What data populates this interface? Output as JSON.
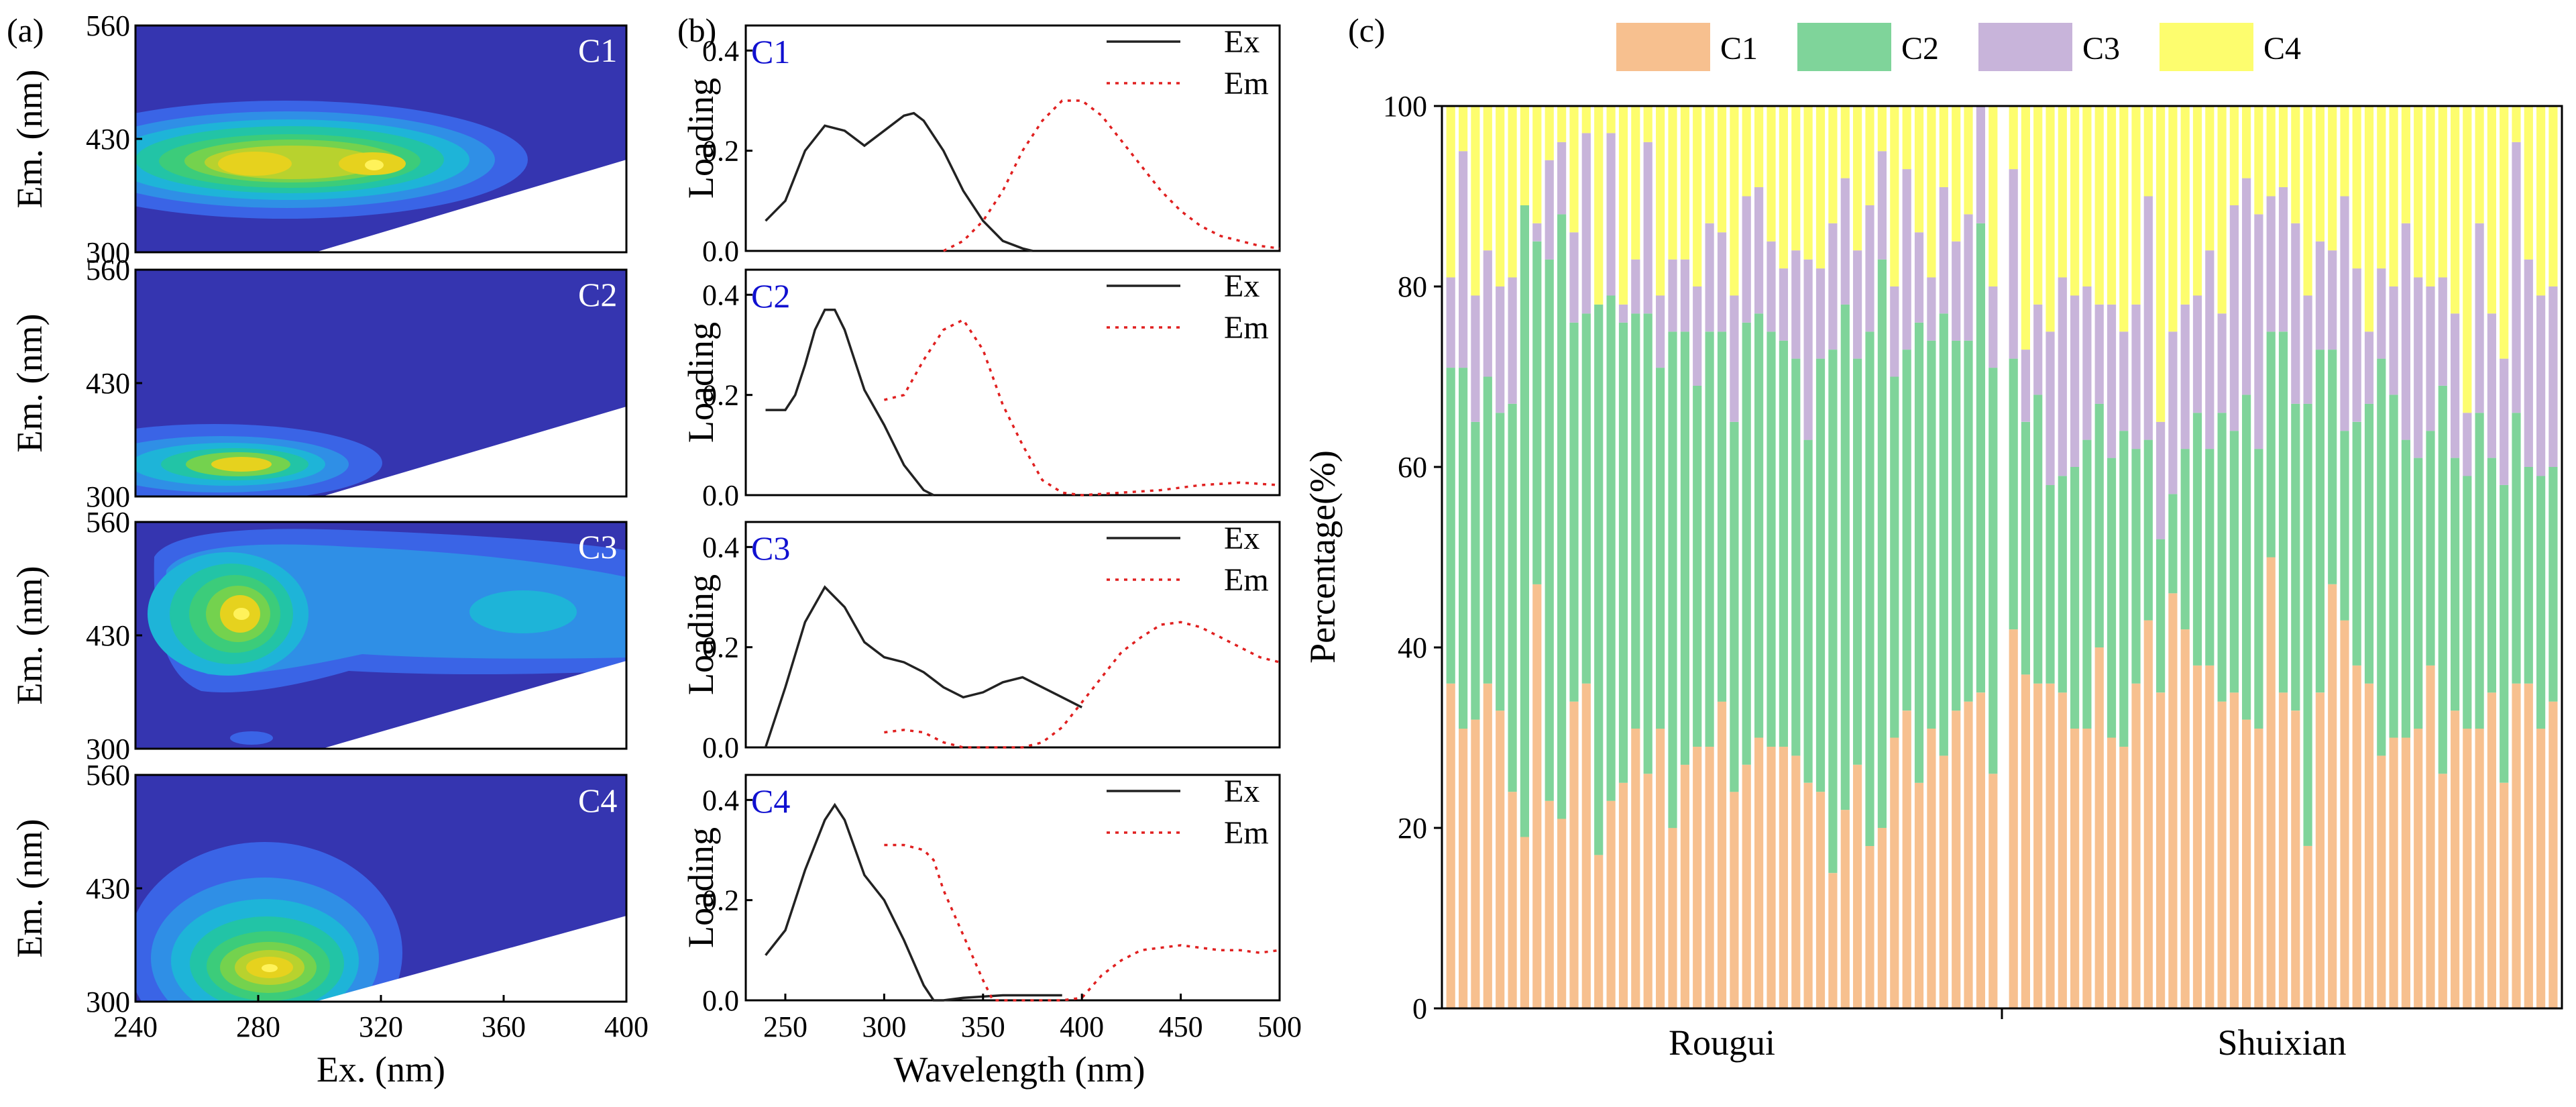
{
  "panels": {
    "a": {
      "letter": "(a)",
      "xlabel": "Ex. (nm)",
      "ylabel": "Em. (nm)",
      "xticks": [
        "240",
        "280",
        "320",
        "360",
        "400"
      ],
      "yticks": [
        "560",
        "430",
        "300"
      ],
      "components": [
        "C1",
        "C2",
        "C3",
        "C4"
      ]
    },
    "b": {
      "letter": "(b)",
      "xlabel": "Wavelength (nm)",
      "ylabel": "Loading",
      "xticks": [
        "250",
        "300",
        "350",
        "400",
        "450",
        "500"
      ],
      "yticks": [
        "0.4",
        "0.2",
        "0.0"
      ],
      "components": [
        "C1",
        "C2",
        "C3",
        "C4"
      ],
      "legend": [
        "Ex",
        "Em"
      ]
    },
    "c": {
      "letter": "(c)",
      "ylabel": "Percentage(%)",
      "yticks": [
        "100",
        "80",
        "60",
        "40",
        "20",
        "0"
      ],
      "groups": [
        "Rougui",
        "Shuixian"
      ],
      "legend": [
        "C1",
        "C2",
        "C3",
        "C4"
      ]
    }
  },
  "colors": {
    "C1": "#f7c08f",
    "C2": "#7fd49a",
    "C3": "#c8b4da",
    "C4": "#fdfd6e",
    "contour_bg": "#3535b0",
    "ex_line": "#222222",
    "em_line": "#e02020",
    "comp_label_b": "#1010d0"
  },
  "chart_data": [
    {
      "type": "heatmap",
      "description_note": "EEM contour maps of four PARAFAC components",
      "x_range_nm": [
        240,
        400
      ],
      "y_range_nm": [
        300,
        560
      ],
      "components": [
        {
          "name": "C1",
          "peaks": [
            {
              "ex": 270,
              "em": 400
            },
            {
              "ex": 315,
              "em": 400
            }
          ]
        },
        {
          "name": "C2",
          "peaks": [
            {
              "ex": 275,
              "em": 335
            }
          ]
        },
        {
          "name": "C3",
          "peaks": [
            {
              "ex": 270,
              "em": 460
            },
            {
              "ex": 370,
              "em": 460
            }
          ]
        },
        {
          "name": "C4",
          "peaks": [
            {
              "ex": 275,
              "em": 340
            }
          ]
        }
      ]
    },
    {
      "type": "line",
      "x_range_nm": [
        230,
        500
      ],
      "ylim": [
        0,
        0.45
      ],
      "components": [
        {
          "name": "C1",
          "Ex": {
            "x": [
              240,
              250,
              260,
              270,
              280,
              290,
              300,
              310,
              315,
              320,
              330,
              340,
              350,
              360,
              370,
              375
            ],
            "y": [
              0.06,
              0.1,
              0.2,
              0.25,
              0.24,
              0.21,
              0.24,
              0.27,
              0.275,
              0.26,
              0.2,
              0.12,
              0.06,
              0.02,
              0.005,
              0.0
            ]
          },
          "Em": {
            "x": [
              330,
              340,
              350,
              360,
              370,
              380,
              390,
              400,
              410,
              420,
              430,
              440,
              450,
              460,
              470,
              480,
              490,
              500
            ],
            "y": [
              0.0,
              0.02,
              0.06,
              0.12,
              0.2,
              0.26,
              0.3,
              0.3,
              0.27,
              0.22,
              0.17,
              0.12,
              0.08,
              0.05,
              0.03,
              0.02,
              0.01,
              0.005
            ]
          }
        },
        {
          "name": "C2",
          "Ex": {
            "x": [
              240,
              250,
              255,
              260,
              265,
              270,
              275,
              280,
              290,
              300,
              310,
              320,
              325
            ],
            "y": [
              0.17,
              0.17,
              0.2,
              0.26,
              0.33,
              0.37,
              0.37,
              0.33,
              0.21,
              0.14,
              0.06,
              0.01,
              0.0
            ]
          },
          "Em": {
            "x": [
              300,
              310,
              320,
              330,
              340,
              350,
              360,
              370,
              380,
              390,
              400,
              420,
              440,
              460,
              480,
              500
            ],
            "y": [
              0.19,
              0.2,
              0.27,
              0.33,
              0.35,
              0.29,
              0.18,
              0.1,
              0.03,
              0.005,
              0.0,
              0.005,
              0.01,
              0.02,
              0.025,
              0.02
            ]
          }
        },
        {
          "name": "C3",
          "Ex": {
            "x": [
              240,
              250,
              260,
              270,
              280,
              290,
              300,
              310,
              320,
              330,
              340,
              350,
              360,
              370,
              380,
              390,
              400
            ],
            "y": [
              0.0,
              0.12,
              0.25,
              0.32,
              0.28,
              0.21,
              0.18,
              0.17,
              0.15,
              0.12,
              0.1,
              0.11,
              0.13,
              0.14,
              0.12,
              0.1,
              0.08
            ]
          },
          "Em": {
            "x": [
              300,
              310,
              320,
              330,
              340,
              350,
              360,
              370,
              380,
              390,
              400,
              410,
              420,
              430,
              440,
              450,
              460,
              470,
              480,
              490,
              500
            ],
            "y": [
              0.03,
              0.035,
              0.03,
              0.01,
              0.0,
              0.0,
              0.0,
              0.0,
              0.01,
              0.04,
              0.09,
              0.14,
              0.19,
              0.22,
              0.245,
              0.25,
              0.24,
              0.22,
              0.2,
              0.18,
              0.17
            ]
          }
        },
        {
          "name": "C4",
          "Ex": {
            "x": [
              240,
              250,
              260,
              270,
              275,
              280,
              290,
              300,
              310,
              320,
              325,
              330,
              340,
              360,
              380,
              390
            ],
            "y": [
              0.09,
              0.14,
              0.26,
              0.36,
              0.39,
              0.36,
              0.25,
              0.2,
              0.12,
              0.03,
              0.0,
              0.0,
              0.005,
              0.01,
              0.01,
              0.01
            ]
          },
          "Em": {
            "x": [
              300,
              310,
              320,
              325,
              330,
              340,
              350,
              355,
              360,
              370,
              380,
              390,
              400,
              410,
              420,
              430,
              440,
              450,
              460,
              470,
              480,
              490,
              500
            ],
            "y": [
              0.31,
              0.31,
              0.3,
              0.28,
              0.22,
              0.13,
              0.04,
              0.0,
              0.0,
              0.0,
              0.0,
              0.0,
              0.005,
              0.05,
              0.08,
              0.1,
              0.105,
              0.11,
              0.105,
              0.1,
              0.1,
              0.095,
              0.1
            ]
          }
        }
      ]
    },
    {
      "type": "bar",
      "stacked": true,
      "ylim": [
        0,
        100
      ],
      "groups": [
        {
          "name": "Rougui",
          "series": [
            {
              "name": "C1",
              "values": [
                36,
                31,
                32,
                36,
                33,
                24,
                19,
                47,
                23,
                21,
                34,
                36,
                17,
                23,
                25,
                31,
                26,
                31,
                20,
                27,
                29,
                29,
                34,
                24,
                27,
                30,
                29,
                29,
                28,
                25,
                24,
                15,
                22,
                27,
                18,
                20,
                30,
                33,
                25,
                31,
                28,
                33,
                34,
                35,
                26
              ]
            },
            {
              "name": "C2",
              "values": [
                35,
                40,
                33,
                34,
                33,
                43,
                70,
                38,
                60,
                67,
                42,
                41,
                61,
                56,
                51,
                46,
                51,
                40,
                55,
                48,
                40,
                46,
                41,
                41,
                49,
                47,
                46,
                45,
                44,
                38,
                48,
                58,
                56,
                45,
                57,
                63,
                40,
                40,
                51,
                43,
                49,
                41,
                40,
                52,
                45
              ]
            },
            {
              "name": "C3",
              "values": [
                10,
                24,
                14,
                14,
                14,
                14,
                0,
                2,
                11,
                8,
                10,
                20,
                0,
                18,
                2,
                6,
                19,
                8,
                8,
                8,
                11,
                12,
                11,
                14,
                14,
                14,
                10,
                8,
                12,
                20,
                10,
                14,
                14,
                12,
                14,
                12,
                10,
                20,
                10,
                7,
                14,
                11,
                14,
                13,
                9
              ]
            },
            {
              "name": "C4",
              "values": [
                19,
                5,
                21,
                16,
                20,
                19,
                11,
                13,
                6,
                4,
                14,
                3,
                22,
                3,
                22,
                17,
                4,
                21,
                17,
                17,
                20,
                13,
                14,
                21,
                10,
                9,
                15,
                18,
                16,
                17,
                18,
                13,
                8,
                16,
                11,
                5,
                20,
                7,
                14,
                19,
                9,
                15,
                12,
                0,
                20
              ]
            }
          ]
        },
        {
          "name": "Shuixian",
          "series": [
            {
              "name": "C1",
              "values": [
                42,
                37,
                36,
                36,
                35,
                31,
                31,
                40,
                30,
                29,
                36,
                43,
                35,
                46,
                42,
                38,
                38,
                34,
                35,
                32,
                31,
                50,
                35,
                33,
                18,
                35,
                47,
                43,
                38,
                36,
                28,
                30,
                30,
                31,
                38,
                26,
                33,
                31,
                31,
                35,
                25,
                36,
                36,
                31,
                34
              ]
            },
            {
              "name": "C2",
              "values": [
                30,
                28,
                32,
                22,
                24,
                29,
                32,
                27,
                31,
                35,
                26,
                20,
                17,
                11,
                20,
                28,
                24,
                32,
                29,
                36,
                31,
                25,
                40,
                34,
                49,
                38,
                26,
                21,
                27,
                31,
                44,
                38,
                33,
                30,
                26,
                43,
                28,
                28,
                35,
                26,
                33,
                30,
                24,
                28,
                26
              ]
            },
            {
              "name": "C3",
              "values": [
                21,
                8,
                10,
                17,
                22,
                19,
                17,
                11,
                17,
                11,
                16,
                27,
                13,
                18,
                16,
                13,
                22,
                11,
                25,
                24,
                26,
                15,
                16,
                20,
                12,
                12,
                11,
                26,
                17,
                8,
                10,
                12,
                24,
                20,
                16,
                12,
                16,
                7,
                21,
                16,
                14,
                30,
                23,
                20,
                20
              ]
            },
            {
              "name": "C4",
              "values": [
                7,
                27,
                22,
                25,
                19,
                21,
                20,
                22,
                22,
                25,
                22,
                10,
                35,
                25,
                22,
                21,
                16,
                23,
                11,
                8,
                12,
                10,
                9,
                13,
                21,
                15,
                16,
                10,
                18,
                25,
                18,
                20,
                13,
                19,
                20,
                19,
                23,
                34,
                13,
                23,
                28,
                4,
                17,
                21,
                20
              ]
            }
          ]
        }
      ]
    }
  ]
}
